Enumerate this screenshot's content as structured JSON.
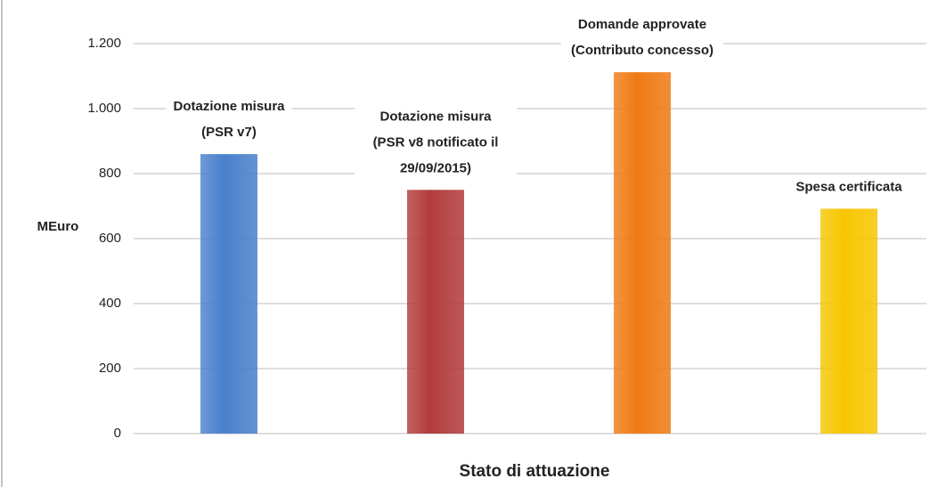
{
  "chart_data": {
    "type": "bar",
    "categories": [
      "Dotazione misura\n(PSR  v7)",
      "Dotazione misura\n(PSR v8 notificato il\n29/09/2015)",
      "Domande approvate\n(Contributo concesso)",
      "Spesa certificata"
    ],
    "values": [
      860,
      750,
      1112,
      692
    ],
    "colors": [
      "#4a80cc",
      "#b23c3c",
      "#f07a14",
      "#f7c600"
    ],
    "y_label": "MEuro",
    "x_label": "Stato di attuazione",
    "ylim": [
      0,
      1200
    ],
    "yticks": [
      0,
      200,
      400,
      600,
      800,
      {
        "value": 1000,
        "label": "1.000"
      },
      {
        "value": 1200,
        "label": "1.200"
      }
    ],
    "grid": true
  }
}
